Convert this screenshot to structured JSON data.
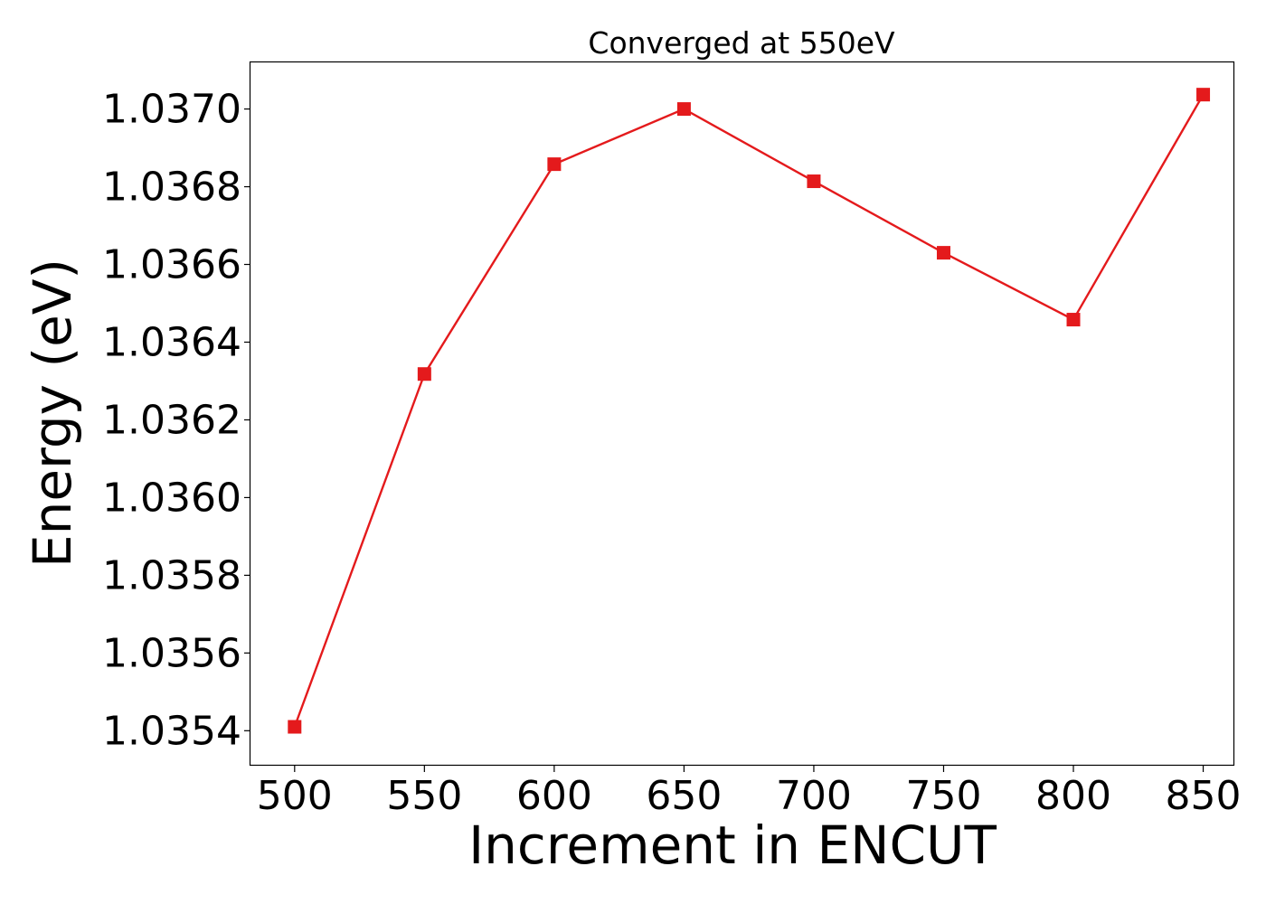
{
  "chart_data": {
    "type": "line",
    "title": "Converged at 550eV",
    "xlabel": "Increment in ENCUT",
    "ylabel": "Energy (eV)",
    "x": [
      500,
      550,
      600,
      650,
      700,
      750,
      800,
      850
    ],
    "series": [
      {
        "values": [
          1.03541,
          1.036318,
          1.036858,
          1.037,
          1.036814,
          1.03663,
          1.036458,
          1.037037
        ],
        "color": "#e41a1c",
        "marker": "square"
      }
    ],
    "xticks": [
      "500",
      "550",
      "600",
      "650",
      "700",
      "750",
      "800",
      "850"
    ],
    "yticks": [
      "1.0354",
      "1.0356",
      "1.0358",
      "1.0360",
      "1.0362",
      "1.0364",
      "1.0366",
      "1.0368",
      "1.0370"
    ],
    "xlim": [
      483,
      862
    ],
    "ylim": [
      1.03531,
      1.03712
    ],
    "grid": false,
    "legend": "none"
  }
}
